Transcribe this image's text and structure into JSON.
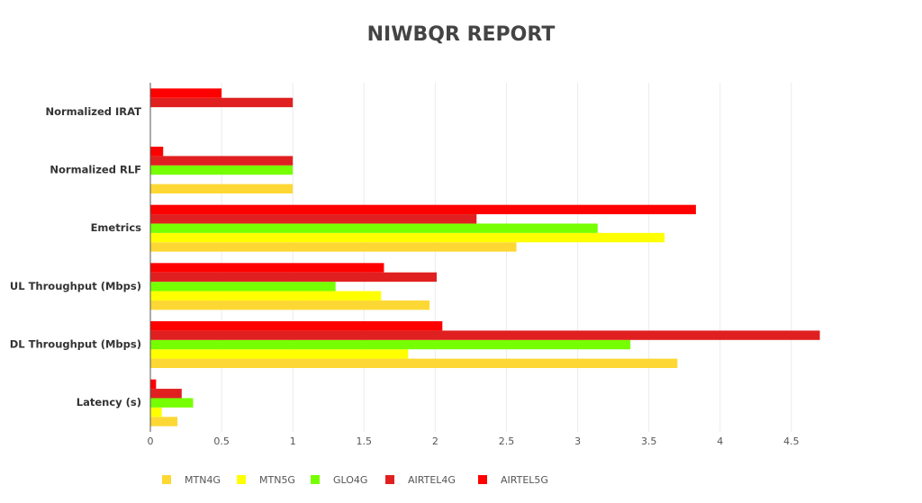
{
  "chart_data": {
    "type": "hbar",
    "title": "NIWBQR REPORT",
    "categories": [
      "Normalized IRAT",
      "Normalized RLF",
      "Emetrics",
      "UL Throughput (Mbps)",
      "DL Throughput (Mbps)",
      "Latency (s)"
    ],
    "series": [
      {
        "name": "MTN4G",
        "color": "#fdd835",
        "values": [
          0,
          1,
          2.57,
          1.96,
          3.7,
          0.19
        ]
      },
      {
        "name": "MTN5G",
        "color": "#ffff00",
        "values": [
          0,
          0,
          3.61,
          1.62,
          1.81,
          0.08
        ]
      },
      {
        "name": "GLO4G",
        "color": "#76ff03",
        "values": [
          0,
          1,
          3.14,
          1.3,
          3.37,
          0.3
        ]
      },
      {
        "name": "AIRTEL4G",
        "color": "#e02020",
        "values": [
          1,
          1,
          2.29,
          2.01,
          4.7,
          0.22
        ]
      },
      {
        "name": "AIRTEL5G",
        "color": "#ff0000",
        "values": [
          0.5,
          0.09,
          3.83,
          1.64,
          2.05,
          0.04
        ]
      }
    ],
    "xlim": [
      0,
      5
    ],
    "xticks": [
      0,
      0.5,
      1,
      1.5,
      2,
      2.5,
      3,
      3.5,
      4,
      4.5
    ],
    "grid": true
  }
}
